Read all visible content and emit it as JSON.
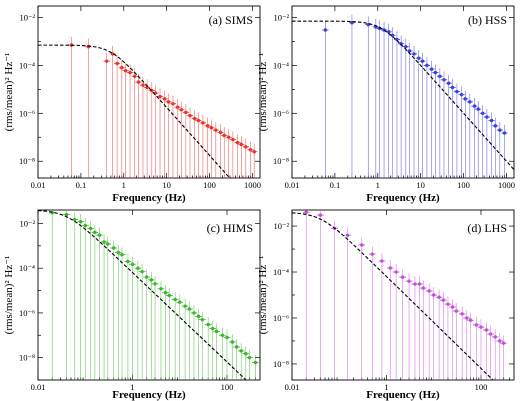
{
  "chart_data": [
    {
      "type": "scatter",
      "title": "(a) SIMS",
      "xlabel": "Frequency (Hz)",
      "ylabel": "(rms/mean)² Hz⁻¹",
      "x_scale": "log",
      "y_scale": "log",
      "xlim": [
        0.01,
        1500
      ],
      "ylim": [
        2e-09,
        0.03
      ],
      "x_ticks": [
        0.01,
        0.1,
        1,
        10,
        100,
        1000
      ],
      "x_tick_labels": [
        "0.01",
        "0.1",
        "1",
        "10",
        "100",
        "1000"
      ],
      "y_ticks": [
        1e-08,
        1e-06,
        0.0001,
        0.01
      ],
      "y_tick_labels": [
        "10⁻⁸",
        "10⁻⁶",
        "10⁻⁴",
        "10⁻²"
      ],
      "grid": false,
      "color": "#e8332b",
      "model": {
        "norm": 0.0007,
        "break_freq": 0.5,
        "index": 2
      },
      "series": [
        {
          "x": [
            0.06,
            0.15,
            0.4,
            0.55,
            0.7,
            0.9,
            1.1,
            1.4,
            1.8,
            2.2,
            2.8,
            3.5,
            4.5,
            5.5,
            7,
            9,
            11,
            14,
            18,
            22,
            28,
            35,
            45,
            55,
            70,
            90,
            110,
            140,
            180,
            220,
            280,
            350,
            450,
            550,
            700,
            900,
            1100
          ],
          "y": [
            0.0007,
            0.0006,
            0.00015,
            0.0003,
            0.00012,
            8e-05,
            6e-05,
            5e-05,
            3.5e-05,
            2e-05,
            1.5e-05,
            1.2e-05,
            9e-06,
            7e-06,
            5e-06,
            4e-06,
            3e-06,
            2.5e-06,
            1.8e-06,
            1.4e-06,
            1.1e-06,
            8e-07,
            6e-07,
            5e-07,
            4e-07,
            3e-07,
            2.5e-07,
            2e-07,
            1.6e-07,
            1.2e-07,
            1e-07,
            8e-08,
            6e-08,
            5e-08,
            4e-08,
            3e-08,
            2.5e-08
          ]
        }
      ]
    },
    {
      "type": "scatter",
      "title": "(b) HSS",
      "xlabel": "Frequency (Hz)",
      "ylabel": "(rms/mean)² Hz⁻¹",
      "x_scale": "log",
      "y_scale": "log",
      "xlim": [
        0.01,
        1500
      ],
      "ylim": [
        2e-09,
        0.03
      ],
      "x_ticks": [
        0.01,
        0.1,
        1,
        10,
        100,
        1000
      ],
      "x_tick_labels": [
        "0.01",
        "0.1",
        "1",
        "10",
        "100",
        "1000"
      ],
      "y_ticks": [
        1e-08,
        1e-06,
        0.0001,
        0.01
      ],
      "y_tick_labels": [
        "10⁻⁸",
        "10⁻⁶",
        "10⁻⁴",
        "10⁻²"
      ],
      "grid": false,
      "color": "#3b3fe0",
      "model": {
        "norm": 0.007,
        "break_freq": 1.2,
        "index": 2
      },
      "series": [
        {
          "x": [
            0.06,
            0.25,
            0.6,
            0.9,
            1.1,
            1.4,
            1.8,
            2.2,
            2.8,
            3.5,
            4.5,
            5.5,
            7,
            9,
            11,
            14,
            18,
            22,
            28,
            35,
            45,
            55,
            70,
            90,
            110,
            140,
            180,
            220,
            280,
            350,
            450,
            550,
            700,
            900
          ],
          "y": [
            0.003,
            0.006,
            0.005,
            0.004,
            0.0035,
            0.003,
            0.0025,
            0.0018,
            0.0012,
            0.0008,
            0.0006,
            0.0004,
            0.0003,
            0.0002,
            0.00015,
            0.0001,
            7e-05,
            5e-05,
            3.5e-05,
            2.5e-05,
            1.8e-05,
            1.2e-05,
            8e-06,
            6e-06,
            4e-06,
            3e-06,
            2e-06,
            1.5e-06,
            1e-06,
            7e-07,
            5e-07,
            3e-07,
            2e-07,
            1.5e-07
          ]
        }
      ]
    },
    {
      "type": "scatter",
      "title": "(c) HIMS",
      "xlabel": "Frequency (Hz)",
      "ylabel": "(rms/mean)² Hz⁻¹",
      "x_scale": "log",
      "y_scale": "log",
      "xlim": [
        0.01,
        500
      ],
      "ylim": [
        1e-09,
        0.04
      ],
      "x_ticks": [
        0.01,
        1,
        100
      ],
      "x_tick_labels": [
        "0.01",
        "1",
        "100"
      ],
      "y_ticks": [
        1e-08,
        1e-06,
        0.0001,
        0.01
      ],
      "y_tick_labels": [
        "10⁻⁸",
        "10⁻⁶",
        "10⁻⁴",
        "10⁻²"
      ],
      "grid": false,
      "color": "#3ab52d",
      "model": {
        "norm": 0.04,
        "break_freq": 0.04,
        "index": 2
      },
      "series": [
        {
          "x": [
            0.02,
            0.04,
            0.06,
            0.08,
            0.1,
            0.13,
            0.16,
            0.2,
            0.25,
            0.3,
            0.4,
            0.5,
            0.6,
            0.8,
            1,
            1.3,
            1.6,
            2,
            2.5,
            3,
            4,
            5,
            6,
            8,
            10,
            13,
            16,
            20,
            25,
            30,
            40,
            50,
            60,
            80,
            100,
            130,
            160,
            200,
            250,
            300,
            400
          ],
          "y": [
            0.03,
            0.025,
            0.015,
            0.012,
            0.008,
            0.006,
            0.004,
            0.003,
            0.0015,
            0.0012,
            0.0008,
            0.0005,
            0.0004,
            0.0002,
            0.00015,
            0.0001,
            7e-05,
            4e-05,
            3e-05,
            2e-05,
            1.2e-05,
            8e-06,
            6e-06,
            4e-06,
            3e-06,
            2e-06,
            1.5e-06,
            1e-06,
            7e-07,
            5e-07,
            3e-07,
            2e-07,
            1.5e-07,
            1e-07,
            8e-08,
            5e-08,
            3e-08,
            2e-08,
            1.5e-08,
            1e-08,
            6e-09
          ]
        }
      ]
    },
    {
      "type": "scatter",
      "title": "(d) LHS",
      "xlabel": "Frequency (Hz)",
      "ylabel": "(rms/mean)² Hz⁻¹",
      "x_scale": "log",
      "y_scale": "log",
      "xlim": [
        0.01,
        500
      ],
      "ylim": [
        2e-09,
        0.05
      ],
      "x_ticks": [
        0.01,
        1,
        100
      ],
      "x_tick_labels": [
        "0.01",
        "1",
        "100"
      ],
      "y_ticks": [
        1e-08,
        1e-06,
        0.0001,
        0.01
      ],
      "y_tick_labels": [
        "10⁻⁸",
        "10⁻⁶",
        "10⁻⁴",
        "10⁻²"
      ],
      "grid": false,
      "color": "#c24fd8",
      "model": {
        "norm": 0.04,
        "break_freq": 0.04,
        "index": 2
      },
      "series": [
        {
          "x": [
            0.02,
            0.04,
            0.08,
            0.15,
            0.3,
            0.5,
            0.8,
            1.2,
            1.6,
            2.2,
            3,
            4,
            5,
            6,
            8,
            10,
            13,
            16,
            20,
            25,
            30,
            40,
            50,
            60,
            80,
            100,
            130,
            160,
            200,
            250,
            300
          ],
          "y": [
            0.04,
            0.03,
            0.008,
            0.004,
            0.0015,
            0.0006,
            0.0003,
            0.00015,
            0.0001,
            6e-05,
            4e-05,
            3e-05,
            3e-05,
            2e-05,
            1.5e-05,
            1e-05,
            8e-06,
            6e-06,
            4e-06,
            3e-06,
            2e-06,
            1.5e-06,
            1e-06,
            8e-07,
            5e-07,
            4e-07,
            3e-07,
            2e-07,
            1.5e-07,
            1e-07,
            8e-08
          ]
        }
      ]
    }
  ]
}
